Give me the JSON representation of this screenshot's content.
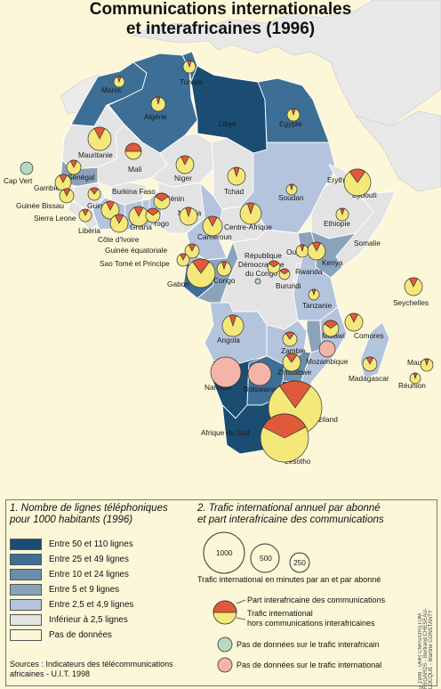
{
  "title": {
    "line1": "Communications internationales",
    "line2": "et interafricaines (1996)"
  },
  "colors": {
    "c50": "#1b4d73",
    "c25": "#3d6f96",
    "c10": "#6b8eaa",
    "c5": "#8aa3bb",
    "c2": "#b5c4dd",
    "clow": "#e3e3e3",
    "cnd": "#fbf7d8",
    "sea": "#fbf7d8",
    "pie_inter": "#e05a3a",
    "pie_hors": "#f5e87a"
  },
  "labels": {
    "maroc": "Maroc",
    "tunisie": "Tunisie",
    "algerie": "Algérie",
    "libye": "Libye",
    "egypte": "Egypte",
    "mauritanie": "Mauritanie",
    "mali": "Mali",
    "niger": "Niger",
    "tchad": "Tchad",
    "soudan": "Soudan",
    "erythree": "Erythrée",
    "djibouti": "Djibouti",
    "ethiopie": "Ethiopie",
    "somalie": "Somalie",
    "cap_vert": "Cap Vert",
    "senegal": "Sénégal",
    "gambie": "Gambie",
    "guinee_bissau": "Guinée Bissau",
    "guinee": "Guinée",
    "sierra_leone": "Sierra Leone",
    "liberia": "Libéria",
    "cote_ivoire": "Côte d'Ivoire",
    "burkina": "Burkina Faso",
    "ghana": "Ghana",
    "togo": "Togo",
    "benin": "Bénin",
    "nigeria": "Nigeria",
    "cameroun": "Cameroun",
    "centrafrique": "Centre-Afrique",
    "guinee_eq": "Guinée équatoriale",
    "sao_tome": "Sao Tomé et Principe",
    "gabon": "Gabon",
    "congo": "Congo",
    "rdc1": "République",
    "rdc2": "Démocratique",
    "rdc3": "du Congo",
    "ouganda": "Ouganda",
    "kenya": "Kenya",
    "rwanda": "Rwanda",
    "burundi": "Burundi",
    "tanzanie": "Tanzanie",
    "seychelles": "Seychelles",
    "angola": "Angola",
    "zambie": "Zambie",
    "malawi": "Malawi",
    "comores": "Comores",
    "mozambique": "Mozambique",
    "zimbabwe": "Zimbabwe",
    "madagascar": "Madagascar",
    "maurice": "Maurice",
    "reunion": "Réunion",
    "namibie": "Namibie",
    "botswana": "Botswana",
    "swaziland": "Swaziland",
    "afrique_sud": "Afrique du Sud",
    "lesotho": "Lesotho"
  },
  "legend": {
    "part1_title_l1": "1. Nombre de lignes téléphoniques",
    "part1_title_l2": "pour 1000 habitants (1996)",
    "classes": [
      {
        "label": "Entre 50 et 110 lignes",
        "color": "#1b4d73"
      },
      {
        "label": "Entre 25 et 49 lignes",
        "color": "#3d6f96"
      },
      {
        "label": "Entre 10 et 24 lignes",
        "color": "#6b8eaa"
      },
      {
        "label": "Entre 5 et 9 lignes",
        "color": "#8aa3bb"
      },
      {
        "label": "Entre 2,5 et 4,9 lignes",
        "color": "#b5c4dd"
      },
      {
        "label": "Inférieur à 2,5 lignes",
        "color": "#e3e3e3"
      },
      {
        "label": "Pas de données",
        "color": "#fbf7d8"
      }
    ],
    "part2_title_l1": "2. Trafic international annuel par abonné",
    "part2_title_l2": "et part interafricaine des communications",
    "circle_values": [
      "1000",
      "500",
      "250"
    ],
    "circle_caption": "Trafic international en minutes par an et par abonné",
    "pie_part_inter": "Part interafricaine des communications",
    "pie_part_hors_l1": "Trafic international",
    "pie_part_hors_l2": "hors communications interafricaines",
    "no_data_interafricain": "Pas de données sur le trafic interafricain",
    "no_data_international": "Pas de données sur le trafic international",
    "source_l1": "Sources : Indicateurs des télécommunications",
    "source_l2": "africaines - U.I.T. 1998",
    "copyright": "©1998 - UMR CNRS/ORSTOM REGARDS - Bertrand CHESEAU-LOCQUE - Martine CONSTANTY"
  }
}
